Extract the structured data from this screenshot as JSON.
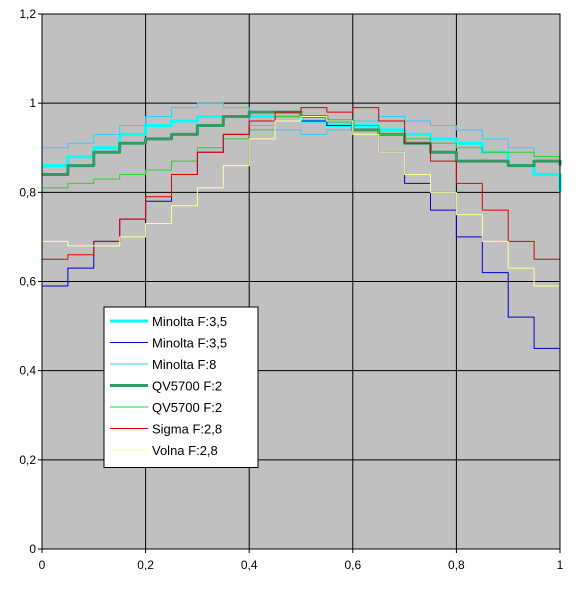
{
  "chart_data": {
    "type": "line",
    "title": "",
    "xlabel": "",
    "ylabel": "",
    "xlim": [
      0,
      1
    ],
    "ylim": [
      0,
      1.2
    ],
    "x_ticks": [
      "0",
      "0,2",
      "0,4",
      "0,6",
      "0,8",
      "1"
    ],
    "y_ticks": [
      "0",
      "0,2",
      "0,4",
      "0,6",
      "0,8",
      "1",
      "1,2"
    ],
    "grid": true,
    "plot_background": "#c0c0c0",
    "legend_position": "lower-left",
    "series": [
      {
        "name": "Minolta F:3,5",
        "color": "#00ffff",
        "width": 3,
        "x": [
          0,
          0.05,
          0.1,
          0.15,
          0.2,
          0.25,
          0.3,
          0.35,
          0.4,
          0.45,
          0.5,
          0.55,
          0.6,
          0.65,
          0.7,
          0.75,
          0.8,
          0.85,
          0.9,
          0.95,
          1.0
        ],
        "y": [
          0.86,
          0.88,
          0.9,
          0.93,
          0.95,
          0.96,
          0.97,
          0.97,
          0.97,
          0.97,
          0.96,
          0.95,
          0.95,
          0.94,
          0.93,
          0.92,
          0.91,
          0.89,
          0.86,
          0.84,
          0.8
        ]
      },
      {
        "name": "Minolta F:3,5",
        "color": "#0000cc",
        "width": 1,
        "x": [
          0,
          0.05,
          0.1,
          0.15,
          0.2,
          0.25,
          0.3,
          0.35,
          0.4,
          0.45,
          0.5,
          0.55,
          0.6,
          0.65,
          0.7,
          0.75,
          0.8,
          0.85,
          0.9,
          0.95,
          1.0
        ],
        "y": [
          0.59,
          0.63,
          0.69,
          0.74,
          0.78,
          0.84,
          0.89,
          0.93,
          0.95,
          0.96,
          0.96,
          0.95,
          0.94,
          0.89,
          0.82,
          0.76,
          0.7,
          0.62,
          0.52,
          0.45,
          0.36
        ]
      },
      {
        "name": "Minolta F:8",
        "color": "#33ccff",
        "width": 1,
        "x": [
          0,
          0.05,
          0.1,
          0.15,
          0.2,
          0.25,
          0.3,
          0.35,
          0.4,
          0.45,
          0.5,
          0.55,
          0.6,
          0.65,
          0.7,
          0.75,
          0.8,
          0.85,
          0.9,
          0.95,
          1.0
        ],
        "y": [
          0.9,
          0.91,
          0.93,
          0.95,
          0.97,
          0.99,
          1.0,
          0.99,
          0.95,
          0.94,
          0.93,
          0.94,
          0.96,
          0.97,
          0.96,
          0.95,
          0.94,
          0.92,
          0.9,
          0.88,
          0.86
        ]
      },
      {
        "name": "QV5700 F:2",
        "color": "#339966",
        "width": 3,
        "x": [
          0,
          0.05,
          0.1,
          0.15,
          0.2,
          0.25,
          0.3,
          0.35,
          0.4,
          0.45,
          0.5,
          0.55,
          0.6,
          0.65,
          0.7,
          0.75,
          0.8,
          0.85,
          0.9,
          0.95,
          1.0
        ],
        "y": [
          0.84,
          0.86,
          0.89,
          0.91,
          0.92,
          0.93,
          0.95,
          0.97,
          0.98,
          0.98,
          0.97,
          0.96,
          0.94,
          0.93,
          0.91,
          0.89,
          0.87,
          0.87,
          0.86,
          0.87,
          0.86
        ]
      },
      {
        "name": "QV5700 F:2",
        "color": "#33cc33",
        "width": 1,
        "x": [
          0,
          0.05,
          0.1,
          0.15,
          0.2,
          0.25,
          0.3,
          0.35,
          0.4,
          0.45,
          0.5,
          0.55,
          0.6,
          0.65,
          0.7,
          0.75,
          0.8,
          0.85,
          0.9,
          0.95,
          1.0
        ],
        "y": [
          0.81,
          0.82,
          0.83,
          0.84,
          0.85,
          0.87,
          0.9,
          0.92,
          0.94,
          0.97,
          0.97,
          0.96,
          0.95,
          0.93,
          0.92,
          0.91,
          0.9,
          0.89,
          0.89,
          0.88,
          0.87
        ]
      },
      {
        "name": "Sigma F:2,8",
        "color": "#dd0000",
        "width": 1,
        "x": [
          0,
          0.05,
          0.1,
          0.15,
          0.2,
          0.25,
          0.3,
          0.35,
          0.4,
          0.45,
          0.5,
          0.55,
          0.6,
          0.65,
          0.7,
          0.75,
          0.8,
          0.85,
          0.9,
          0.95,
          1.0
        ],
        "y": [
          0.65,
          0.66,
          0.69,
          0.74,
          0.79,
          0.84,
          0.89,
          0.93,
          0.96,
          0.98,
          0.99,
          0.98,
          0.99,
          0.96,
          0.91,
          0.87,
          0.82,
          0.76,
          0.69,
          0.65,
          0.62
        ]
      },
      {
        "name": "Volna F:2,8",
        "color": "#ffff99",
        "width": 1,
        "x": [
          0,
          0.05,
          0.1,
          0.15,
          0.2,
          0.25,
          0.3,
          0.35,
          0.4,
          0.45,
          0.5,
          0.55,
          0.6,
          0.65,
          0.7,
          0.75,
          0.8,
          0.85,
          0.9,
          0.95,
          1.0
        ],
        "y": [
          0.69,
          0.68,
          0.68,
          0.7,
          0.73,
          0.77,
          0.81,
          0.86,
          0.92,
          0.96,
          0.97,
          0.96,
          0.93,
          0.89,
          0.84,
          0.8,
          0.75,
          0.69,
          0.63,
          0.59,
          0.57
        ]
      }
    ]
  }
}
